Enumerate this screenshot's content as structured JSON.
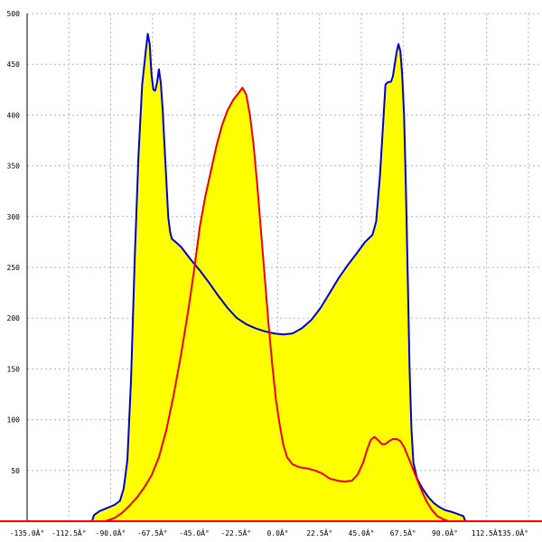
{
  "chart_data": {
    "type": "area",
    "title": "",
    "xlabel": "",
    "ylabel": "",
    "xlim": [
      -135,
      135
    ],
    "ylim": [
      0,
      500
    ],
    "grid": true,
    "x_ticks": [
      {
        "value": -135,
        "label": "-135.0Â°"
      },
      {
        "value": -112.5,
        "label": "-112.5Â°"
      },
      {
        "value": -90,
        "label": "-90.0Â°"
      },
      {
        "value": -67.5,
        "label": "-67.5Â°"
      },
      {
        "value": -45,
        "label": "-45.0Â°"
      },
      {
        "value": -22.5,
        "label": "-22.5Â°"
      },
      {
        "value": 0,
        "label": "0.0Â°"
      },
      {
        "value": 22.5,
        "label": "22.5Â°"
      },
      {
        "value": 45,
        "label": "45.0Â°"
      },
      {
        "value": 67.5,
        "label": "67.5Â°"
      },
      {
        "value": 90,
        "label": "90.0Â°"
      },
      {
        "value": 112.5,
        "label": "112.5Â°"
      },
      {
        "value": 135,
        "label": "135.0Â°"
      }
    ],
    "y_ticks": [
      {
        "value": 50,
        "label": "50"
      },
      {
        "value": 100,
        "label": "100"
      },
      {
        "value": 150,
        "label": "150"
      },
      {
        "value": 200,
        "label": "200"
      },
      {
        "value": 250,
        "label": "250"
      },
      {
        "value": 300,
        "label": "300"
      },
      {
        "value": 350,
        "label": "350"
      },
      {
        "value": 400,
        "label": "400"
      },
      {
        "value": 450,
        "label": "450"
      },
      {
        "value": 500,
        "label": "500"
      }
    ],
    "fill_color": "#ffff00",
    "series": [
      {
        "color": "#0000cc",
        "points": [
          [
            -100,
            0
          ],
          [
            -99,
            6
          ],
          [
            -96,
            10
          ],
          [
            -92,
            13
          ],
          [
            -88,
            16
          ],
          [
            -85,
            20
          ],
          [
            -83,
            32
          ],
          [
            -81,
            60
          ],
          [
            -79,
            140
          ],
          [
            -77,
            260
          ],
          [
            -75,
            360
          ],
          [
            -73,
            430
          ],
          [
            -71,
            465
          ],
          [
            -70,
            480
          ],
          [
            -69,
            470
          ],
          [
            -68,
            440
          ],
          [
            -67,
            425
          ],
          [
            -66,
            424
          ],
          [
            -65,
            432
          ],
          [
            -64,
            445
          ],
          [
            -63,
            432
          ],
          [
            -62,
            405
          ],
          [
            -61,
            370
          ],
          [
            -60,
            335
          ],
          [
            -59,
            300
          ],
          [
            -58,
            285
          ],
          [
            -57,
            278
          ],
          [
            -55,
            275
          ],
          [
            -52,
            270
          ],
          [
            -47,
            258
          ],
          [
            -42,
            247
          ],
          [
            -37,
            235
          ],
          [
            -32,
            222
          ],
          [
            -27,
            210
          ],
          [
            -22,
            200
          ],
          [
            -17,
            194
          ],
          [
            -12,
            190
          ],
          [
            -7,
            187
          ],
          [
            -2,
            185
          ],
          [
            3,
            184
          ],
          [
            8,
            185
          ],
          [
            13,
            190
          ],
          [
            18,
            198
          ],
          [
            23,
            210
          ],
          [
            28,
            225
          ],
          [
            33,
            240
          ],
          [
            38,
            253
          ],
          [
            43,
            265
          ],
          [
            47,
            275
          ],
          [
            51,
            282
          ],
          [
            53,
            295
          ],
          [
            55,
            340
          ],
          [
            57,
            400
          ],
          [
            58,
            430
          ],
          [
            59,
            432
          ],
          [
            61,
            433
          ],
          [
            62,
            438
          ],
          [
            63,
            450
          ],
          [
            64,
            462
          ],
          [
            65,
            470
          ],
          [
            66,
            463
          ],
          [
            67,
            440
          ],
          [
            68,
            400
          ],
          [
            69,
            330
          ],
          [
            70,
            240
          ],
          [
            71,
            150
          ],
          [
            72,
            90
          ],
          [
            73,
            58
          ],
          [
            75,
            42
          ],
          [
            78,
            32
          ],
          [
            81,
            24
          ],
          [
            84,
            18
          ],
          [
            87,
            14
          ],
          [
            90,
            11
          ],
          [
            94,
            9
          ],
          [
            97,
            7
          ],
          [
            100,
            5
          ],
          [
            101,
            0
          ]
        ]
      },
      {
        "color": "#ee0000",
        "points": [
          [
            -93,
            0
          ],
          [
            -88,
            3
          ],
          [
            -84,
            8
          ],
          [
            -80,
            15
          ],
          [
            -76,
            23
          ],
          [
            -72,
            33
          ],
          [
            -68,
            45
          ],
          [
            -64,
            63
          ],
          [
            -60,
            90
          ],
          [
            -56,
            125
          ],
          [
            -52,
            165
          ],
          [
            -48,
            210
          ],
          [
            -45,
            248
          ],
          [
            -42,
            290
          ],
          [
            -39,
            320
          ],
          [
            -36,
            345
          ],
          [
            -33,
            370
          ],
          [
            -30,
            390
          ],
          [
            -27,
            405
          ],
          [
            -24,
            415
          ],
          [
            -21,
            422
          ],
          [
            -19,
            427
          ],
          [
            -17,
            420
          ],
          [
            -15,
            400
          ],
          [
            -13,
            370
          ],
          [
            -11,
            330
          ],
          [
            -9,
            285
          ],
          [
            -7,
            240
          ],
          [
            -5,
            195
          ],
          [
            -3,
            155
          ],
          [
            -1,
            120
          ],
          [
            1,
            95
          ],
          [
            3,
            75
          ],
          [
            5,
            63
          ],
          [
            8,
            56
          ],
          [
            12,
            53
          ],
          [
            16,
            52
          ],
          [
            20,
            50
          ],
          [
            24,
            47
          ],
          [
            28,
            42
          ],
          [
            32,
            40
          ],
          [
            36,
            39
          ],
          [
            40,
            40
          ],
          [
            43,
            46
          ],
          [
            46,
            58
          ],
          [
            48,
            70
          ],
          [
            50,
            80
          ],
          [
            52,
            83
          ],
          [
            54,
            80
          ],
          [
            56,
            76
          ],
          [
            58,
            76
          ],
          [
            60,
            79
          ],
          [
            62,
            81
          ],
          [
            64,
            81
          ],
          [
            66,
            79
          ],
          [
            68,
            73
          ],
          [
            71,
            60
          ],
          [
            74,
            46
          ],
          [
            77,
            32
          ],
          [
            80,
            20
          ],
          [
            83,
            11
          ],
          [
            86,
            5
          ],
          [
            89,
            2
          ],
          [
            92,
            0
          ]
        ]
      }
    ]
  }
}
